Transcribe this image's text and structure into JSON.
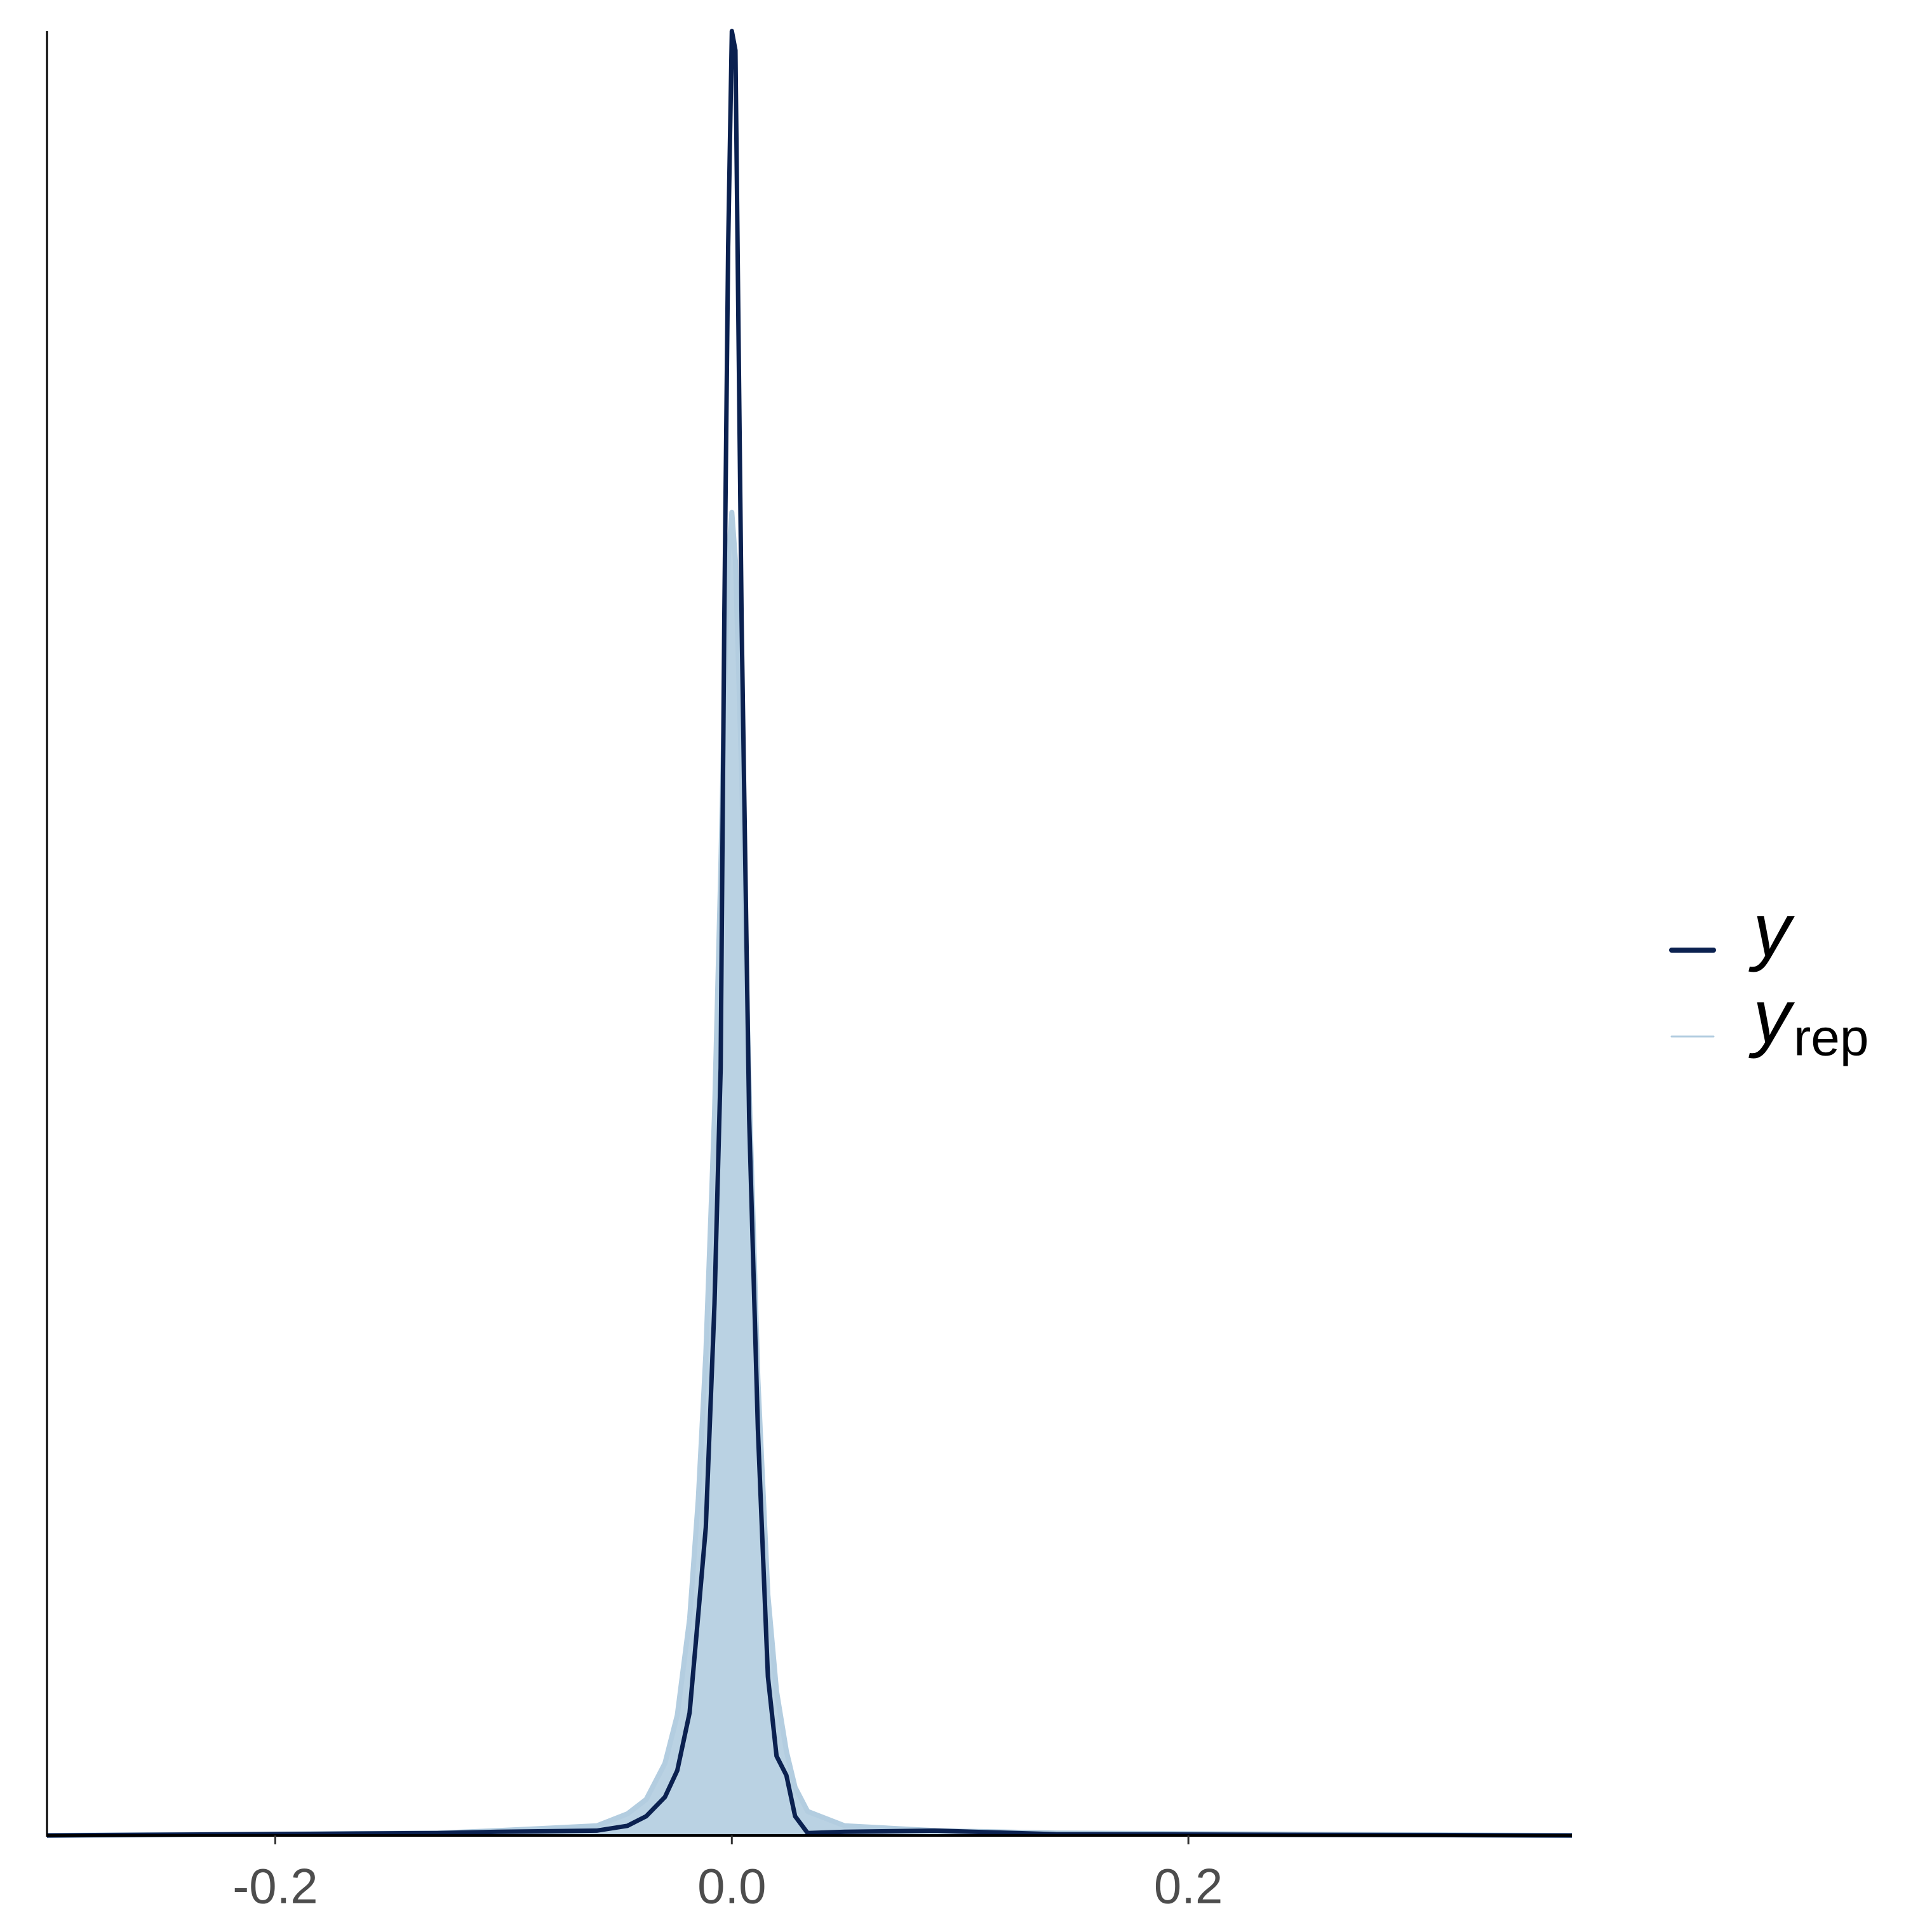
{
  "chart_data": {
    "type": "line",
    "x": [
      -0.3,
      -0.1288,
      -0.1027,
      -0.0592,
      -0.0457,
      -0.0375,
      -0.0293,
      -0.0239,
      -0.0185,
      -0.0147,
      -0.0114,
      -0.0076,
      -0.0049,
      -0.0033,
      -0.0016,
      0,
      0.0016,
      0.0043,
      0.0076,
      0.0114,
      0.0158,
      0.0196,
      0.0239,
      0.0277,
      0.0332,
      0.0495,
      0.0891,
      0.1418,
      0.368
    ],
    "series": [
      {
        "name": "y",
        "color": "#0b2150",
        "values": [
          0,
          0.1,
          0.15,
          0.2,
          0.4,
          0.8,
          1.6,
          2.7,
          5.1,
          9.2,
          12.8,
          22.1,
          31.9,
          50.5,
          66,
          75,
          74.2,
          50.5,
          29.8,
          16.9,
          6.6,
          3.3,
          2.5,
          0.8,
          0.1,
          0.15,
          0.2,
          0.05,
          0
        ]
      },
      {
        "name": "y",
        "subscript": "rep",
        "color": "#b3cde0",
        "values": [
          0,
          0.1,
          0.2,
          0.4,
          0.9,
          1.5,
          3,
          5,
          9,
          14,
          20,
          30,
          40,
          47,
          53,
          55,
          53,
          44,
          31,
          19,
          10,
          6,
          3.5,
          2,
          1,
          0.4,
          0.2,
          0.1,
          0
        ]
      }
    ],
    "xlim": [
      -0.3,
      0.368
    ],
    "xticks": [
      -0.2,
      {
        "value": 0,
        "label": "0.0"
      },
      0.2
    ],
    "ylim": [
      0,
      75
    ],
    "legend": "right"
  }
}
